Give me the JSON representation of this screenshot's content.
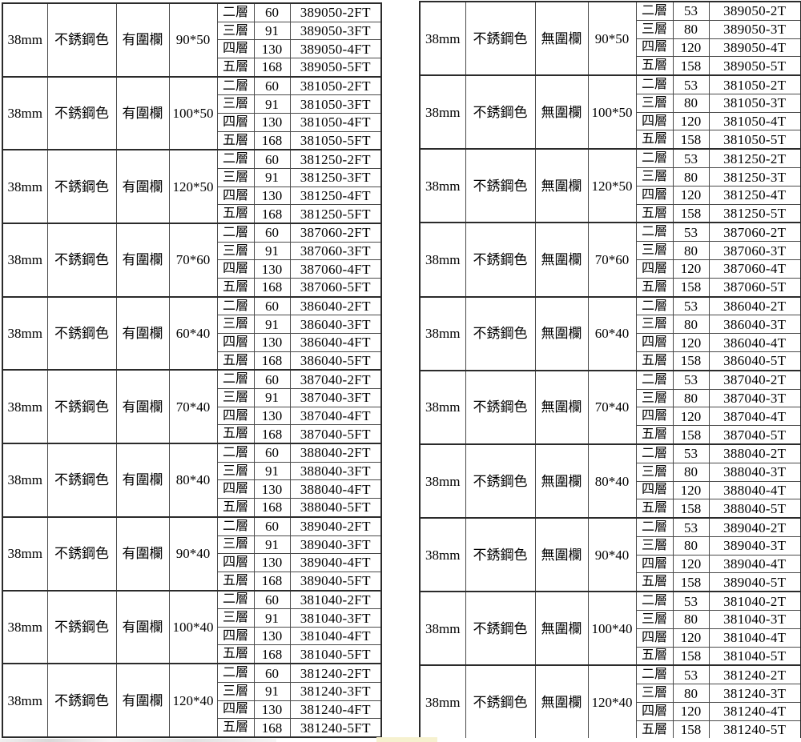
{
  "colors": {
    "background": "#ffffff",
    "border_thin": "#4a4a4a",
    "border_thick": "#2b2b2b",
    "text": "#000000",
    "artifact_yellow": "#f6f1cf"
  },
  "tables": [
    {
      "id": "with-rail",
      "tube": "38mm",
      "finish": "不銹鋼色",
      "rail": "有圍欄",
      "tier_labels": [
        "二層",
        "三層",
        "四層",
        "五層"
      ],
      "tier_values": [
        "60",
        "91",
        "130",
        "168"
      ],
      "groups": [
        {
          "size": "90*50",
          "codes": [
            "389050-2FT",
            "389050-3FT",
            "389050-4FT",
            "389050-5FT"
          ]
        },
        {
          "size": "100*50",
          "codes": [
            "381050-2FT",
            "381050-3FT",
            "381050-4FT",
            "381050-5FT"
          ]
        },
        {
          "size": "120*50",
          "codes": [
            "381250-2FT",
            "381250-3FT",
            "381250-4FT",
            "381250-5FT"
          ]
        },
        {
          "size": "70*60",
          "codes": [
            "387060-2FT",
            "387060-3FT",
            "387060-4FT",
            "387060-5FT"
          ]
        },
        {
          "size": "60*40",
          "codes": [
            "386040-2FT",
            "386040-3FT",
            "386040-4FT",
            "386040-5FT"
          ]
        },
        {
          "size": "70*40",
          "codes": [
            "387040-2FT",
            "387040-3FT",
            "387040-4FT",
            "387040-5FT"
          ]
        },
        {
          "size": "80*40",
          "codes": [
            "388040-2FT",
            "388040-3FT",
            "388040-4FT",
            "388040-5FT"
          ]
        },
        {
          "size": "90*40",
          "codes": [
            "389040-2FT",
            "389040-3FT",
            "389040-4FT",
            "389040-5FT"
          ]
        },
        {
          "size": "100*40",
          "codes": [
            "381040-2FT",
            "381040-3FT",
            "381040-4FT",
            "381040-5FT"
          ]
        },
        {
          "size": "120*40",
          "codes": [
            "381240-2FT",
            "381240-3FT",
            "381240-4FT",
            "381240-5FT"
          ]
        }
      ]
    },
    {
      "id": "without-rail",
      "tube": "38mm",
      "finish": "不銹鋼色",
      "rail": "無圍欄",
      "tier_labels": [
        "二層",
        "三層",
        "四層",
        "五層"
      ],
      "tier_values": [
        "53",
        "80",
        "120",
        "158"
      ],
      "groups": [
        {
          "size": "90*50",
          "codes": [
            "389050-2T",
            "389050-3T",
            "389050-4T",
            "389050-5T"
          ]
        },
        {
          "size": "100*50",
          "codes": [
            "381050-2T",
            "381050-3T",
            "381050-4T",
            "381050-5T"
          ]
        },
        {
          "size": "120*50",
          "codes": [
            "381250-2T",
            "381250-3T",
            "381250-4T",
            "381250-5T"
          ]
        },
        {
          "size": "70*60",
          "codes": [
            "387060-2T",
            "387060-3T",
            "387060-4T",
            "387060-5T"
          ]
        },
        {
          "size": "60*40",
          "codes": [
            "386040-2T",
            "386040-3T",
            "386040-4T",
            "386040-5T"
          ]
        },
        {
          "size": "70*40",
          "codes": [
            "387040-2T",
            "387040-3T",
            "387040-4T",
            "387040-5T"
          ]
        },
        {
          "size": "80*40",
          "codes": [
            "388040-2T",
            "388040-3T",
            "388040-4T",
            "388040-5T"
          ]
        },
        {
          "size": "90*40",
          "codes": [
            "389040-2T",
            "389040-3T",
            "389040-4T",
            "389040-5T"
          ]
        },
        {
          "size": "100*40",
          "codes": [
            "381040-2T",
            "381040-3T",
            "381040-4T",
            "381040-5T"
          ]
        },
        {
          "size": "120*40",
          "codes": [
            "381240-2T",
            "381240-3T",
            "381240-4T",
            "381240-5T"
          ]
        }
      ]
    }
  ]
}
